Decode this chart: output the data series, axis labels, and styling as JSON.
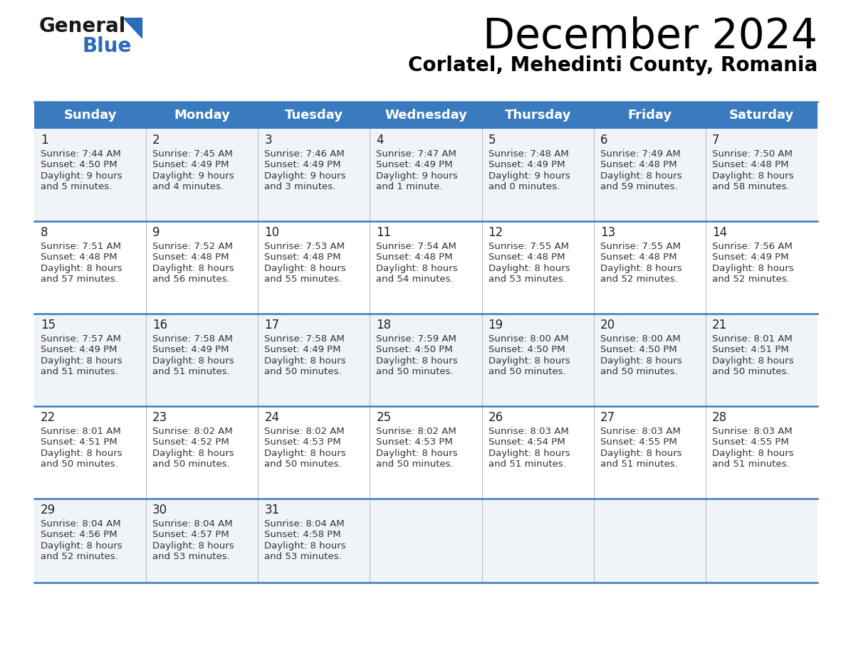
{
  "title": "December 2024",
  "subtitle": "Corlatel, Mehedinti County, Romania",
  "days_of_week": [
    "Sunday",
    "Monday",
    "Tuesday",
    "Wednesday",
    "Thursday",
    "Friday",
    "Saturday"
  ],
  "header_bg": "#3a7bbf",
  "header_text": "#ffffff",
  "separator_color": "#3a7bbf",
  "cell_data": [
    [
      {
        "day": 1,
        "sunrise": "7:44 AM",
        "sunset": "4:50 PM",
        "daylight_line1": "9 hours",
        "daylight_line2": "and 5 minutes."
      },
      {
        "day": 2,
        "sunrise": "7:45 AM",
        "sunset": "4:49 PM",
        "daylight_line1": "9 hours",
        "daylight_line2": "and 4 minutes."
      },
      {
        "day": 3,
        "sunrise": "7:46 AM",
        "sunset": "4:49 PM",
        "daylight_line1": "9 hours",
        "daylight_line2": "and 3 minutes."
      },
      {
        "day": 4,
        "sunrise": "7:47 AM",
        "sunset": "4:49 PM",
        "daylight_line1": "9 hours",
        "daylight_line2": "and 1 minute."
      },
      {
        "day": 5,
        "sunrise": "7:48 AM",
        "sunset": "4:49 PM",
        "daylight_line1": "9 hours",
        "daylight_line2": "and 0 minutes."
      },
      {
        "day": 6,
        "sunrise": "7:49 AM",
        "sunset": "4:48 PM",
        "daylight_line1": "8 hours",
        "daylight_line2": "and 59 minutes."
      },
      {
        "day": 7,
        "sunrise": "7:50 AM",
        "sunset": "4:48 PM",
        "daylight_line1": "8 hours",
        "daylight_line2": "and 58 minutes."
      }
    ],
    [
      {
        "day": 8,
        "sunrise": "7:51 AM",
        "sunset": "4:48 PM",
        "daylight_line1": "8 hours",
        "daylight_line2": "and 57 minutes."
      },
      {
        "day": 9,
        "sunrise": "7:52 AM",
        "sunset": "4:48 PM",
        "daylight_line1": "8 hours",
        "daylight_line2": "and 56 minutes."
      },
      {
        "day": 10,
        "sunrise": "7:53 AM",
        "sunset": "4:48 PM",
        "daylight_line1": "8 hours",
        "daylight_line2": "and 55 minutes."
      },
      {
        "day": 11,
        "sunrise": "7:54 AM",
        "sunset": "4:48 PM",
        "daylight_line1": "8 hours",
        "daylight_line2": "and 54 minutes."
      },
      {
        "day": 12,
        "sunrise": "7:55 AM",
        "sunset": "4:48 PM",
        "daylight_line1": "8 hours",
        "daylight_line2": "and 53 minutes."
      },
      {
        "day": 13,
        "sunrise": "7:55 AM",
        "sunset": "4:48 PM",
        "daylight_line1": "8 hours",
        "daylight_line2": "and 52 minutes."
      },
      {
        "day": 14,
        "sunrise": "7:56 AM",
        "sunset": "4:49 PM",
        "daylight_line1": "8 hours",
        "daylight_line2": "and 52 minutes."
      }
    ],
    [
      {
        "day": 15,
        "sunrise": "7:57 AM",
        "sunset": "4:49 PM",
        "daylight_line1": "8 hours",
        "daylight_line2": "and 51 minutes."
      },
      {
        "day": 16,
        "sunrise": "7:58 AM",
        "sunset": "4:49 PM",
        "daylight_line1": "8 hours",
        "daylight_line2": "and 51 minutes."
      },
      {
        "day": 17,
        "sunrise": "7:58 AM",
        "sunset": "4:49 PM",
        "daylight_line1": "8 hours",
        "daylight_line2": "and 50 minutes."
      },
      {
        "day": 18,
        "sunrise": "7:59 AM",
        "sunset": "4:50 PM",
        "daylight_line1": "8 hours",
        "daylight_line2": "and 50 minutes."
      },
      {
        "day": 19,
        "sunrise": "8:00 AM",
        "sunset": "4:50 PM",
        "daylight_line1": "8 hours",
        "daylight_line2": "and 50 minutes."
      },
      {
        "day": 20,
        "sunrise": "8:00 AM",
        "sunset": "4:50 PM",
        "daylight_line1": "8 hours",
        "daylight_line2": "and 50 minutes."
      },
      {
        "day": 21,
        "sunrise": "8:01 AM",
        "sunset": "4:51 PM",
        "daylight_line1": "8 hours",
        "daylight_line2": "and 50 minutes."
      }
    ],
    [
      {
        "day": 22,
        "sunrise": "8:01 AM",
        "sunset": "4:51 PM",
        "daylight_line1": "8 hours",
        "daylight_line2": "and 50 minutes."
      },
      {
        "day": 23,
        "sunrise": "8:02 AM",
        "sunset": "4:52 PM",
        "daylight_line1": "8 hours",
        "daylight_line2": "and 50 minutes."
      },
      {
        "day": 24,
        "sunrise": "8:02 AM",
        "sunset": "4:53 PM",
        "daylight_line1": "8 hours",
        "daylight_line2": "and 50 minutes."
      },
      {
        "day": 25,
        "sunrise": "8:02 AM",
        "sunset": "4:53 PM",
        "daylight_line1": "8 hours",
        "daylight_line2": "and 50 minutes."
      },
      {
        "day": 26,
        "sunrise": "8:03 AM",
        "sunset": "4:54 PM",
        "daylight_line1": "8 hours",
        "daylight_line2": "and 51 minutes."
      },
      {
        "day": 27,
        "sunrise": "8:03 AM",
        "sunset": "4:55 PM",
        "daylight_line1": "8 hours",
        "daylight_line2": "and 51 minutes."
      },
      {
        "day": 28,
        "sunrise": "8:03 AM",
        "sunset": "4:55 PM",
        "daylight_line1": "8 hours",
        "daylight_line2": "and 51 minutes."
      }
    ],
    [
      {
        "day": 29,
        "sunrise": "8:04 AM",
        "sunset": "4:56 PM",
        "daylight_line1": "8 hours",
        "daylight_line2": "and 52 minutes."
      },
      {
        "day": 30,
        "sunrise": "8:04 AM",
        "sunset": "4:57 PM",
        "daylight_line1": "8 hours",
        "daylight_line2": "and 53 minutes."
      },
      {
        "day": 31,
        "sunrise": "8:04 AM",
        "sunset": "4:58 PM",
        "daylight_line1": "8 hours",
        "daylight_line2": "and 53 minutes."
      },
      null,
      null,
      null,
      null
    ]
  ]
}
